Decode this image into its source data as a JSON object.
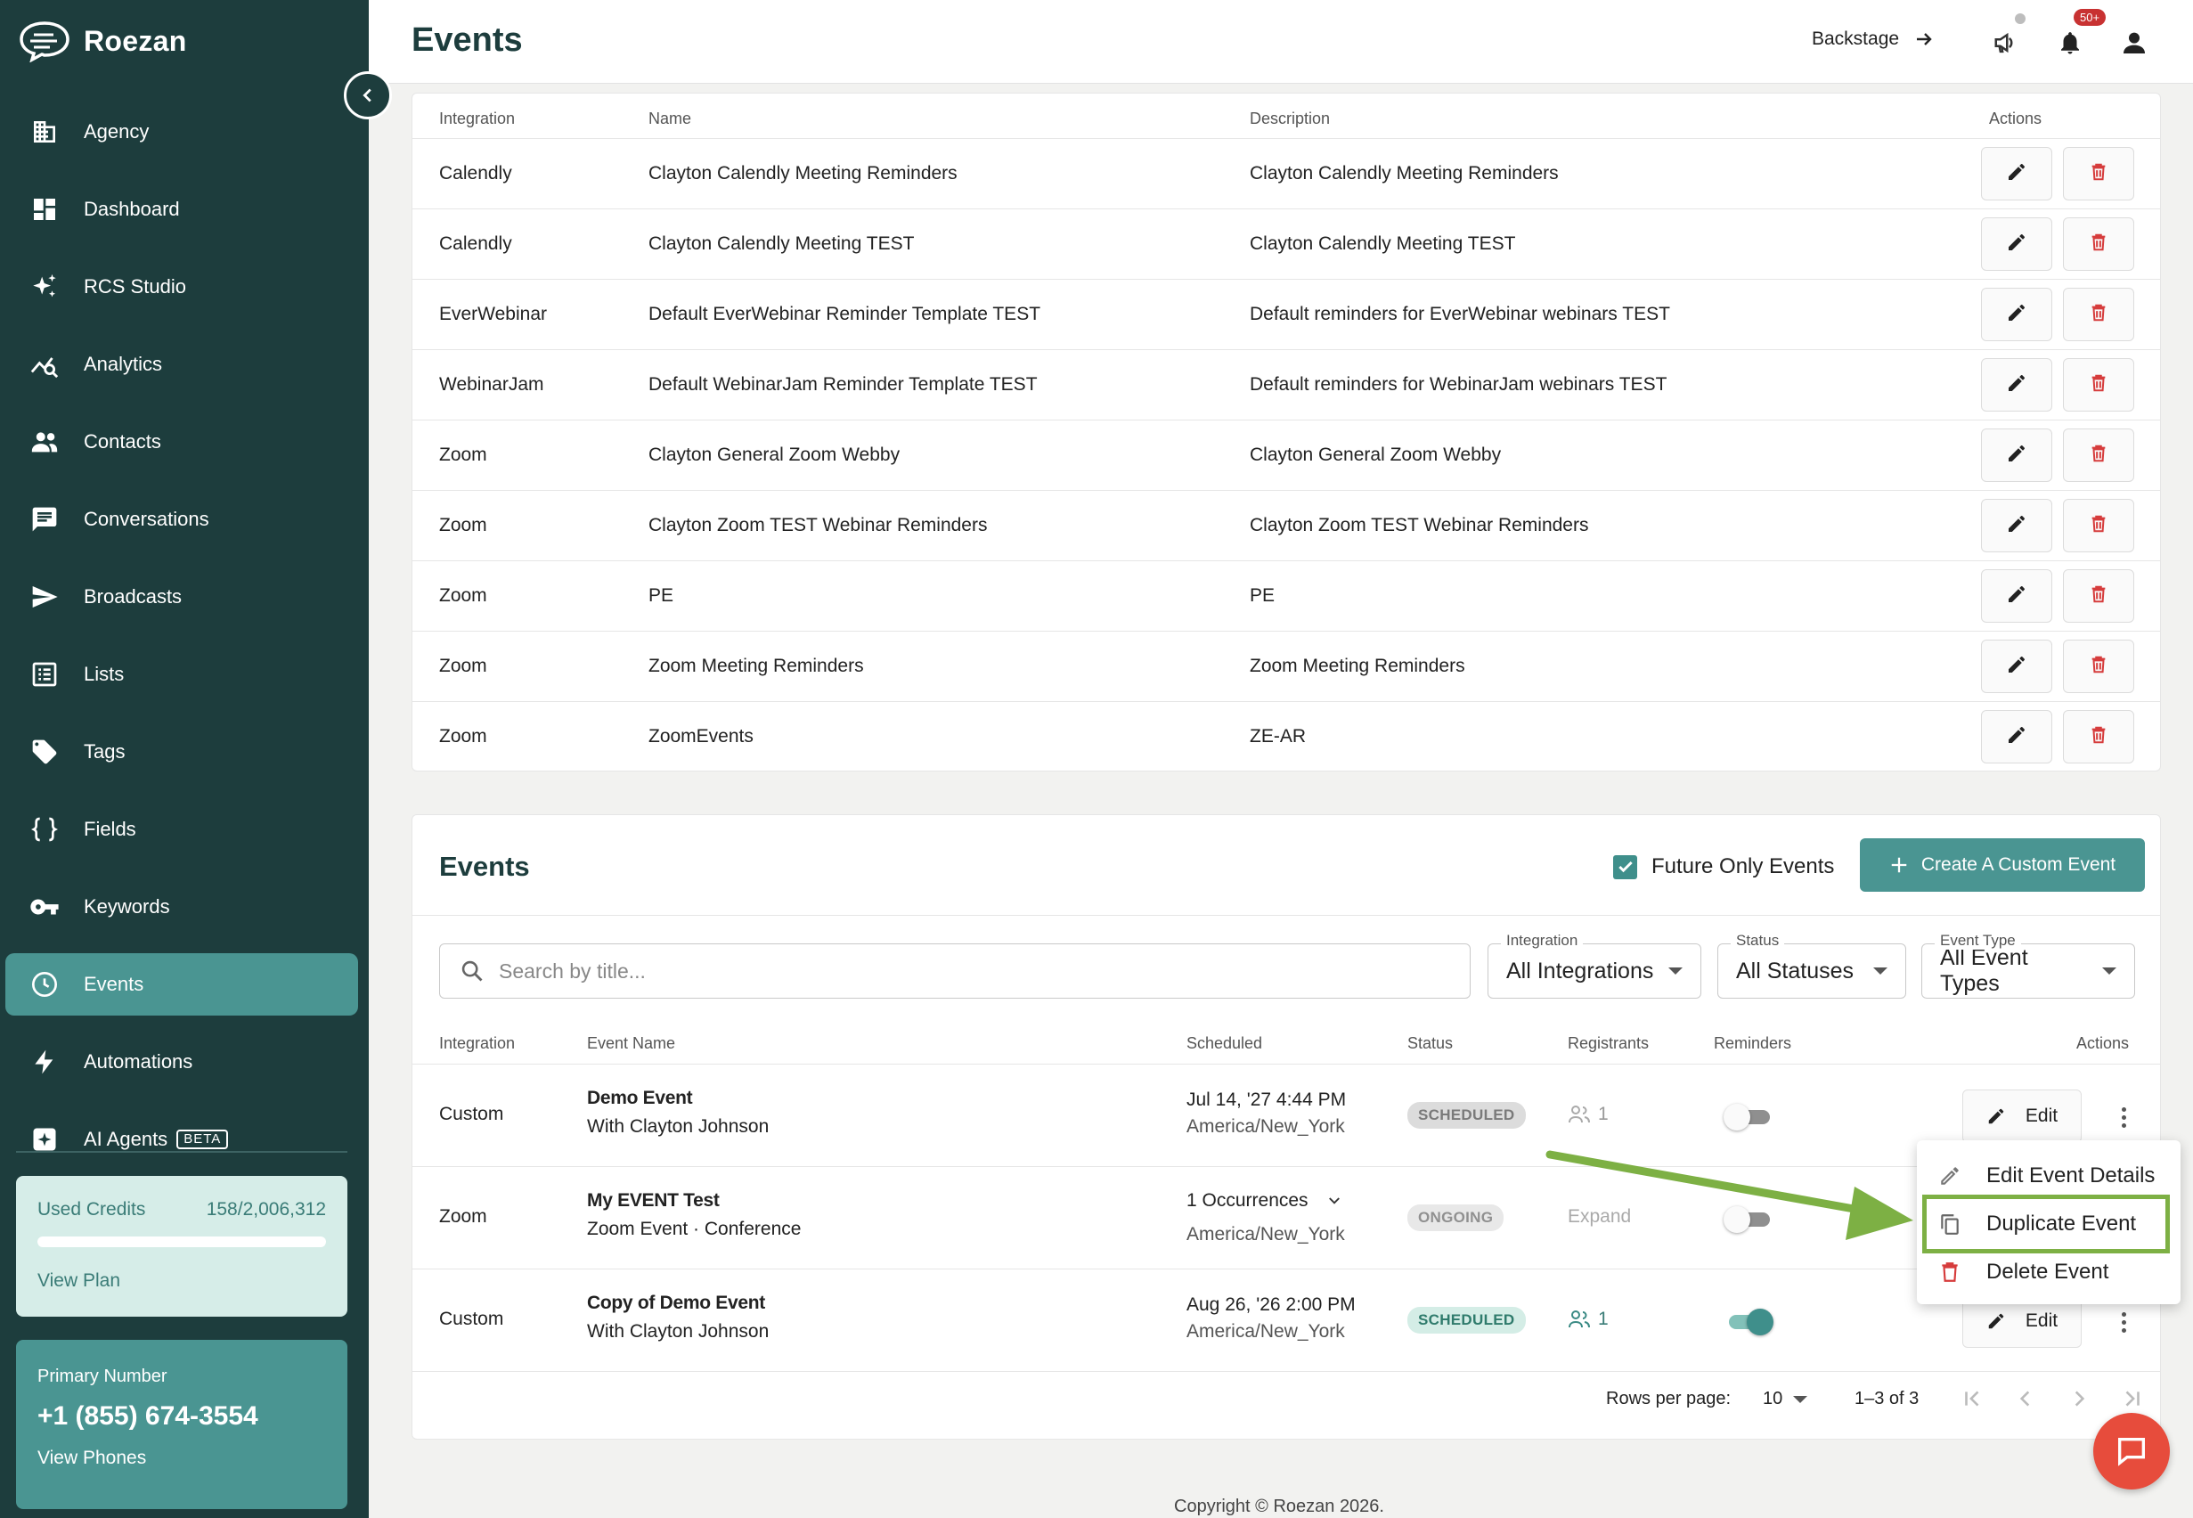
{
  "app": {
    "name": "Roezan",
    "page_title": "Events"
  },
  "sidebar": {
    "items": [
      {
        "label": "Agency",
        "icon": "building-icon"
      },
      {
        "label": "Dashboard",
        "icon": "dashboard-icon"
      },
      {
        "label": "RCS Studio",
        "icon": "sparkle-icon"
      },
      {
        "label": "Analytics",
        "icon": "analytics-icon"
      },
      {
        "label": "Contacts",
        "icon": "people-icon"
      },
      {
        "label": "Conversations",
        "icon": "chat-icon"
      },
      {
        "label": "Broadcasts",
        "icon": "send-icon"
      },
      {
        "label": "Lists",
        "icon": "list-icon"
      },
      {
        "label": "Tags",
        "icon": "tag-icon"
      },
      {
        "label": "Fields",
        "icon": "braces-icon"
      },
      {
        "label": "Keywords",
        "icon": "key-icon"
      },
      {
        "label": "Events",
        "icon": "clock-icon"
      },
      {
        "label": "Automations",
        "icon": "bolt-icon"
      },
      {
        "label": "AI Agents",
        "icon": "ai-sparkle-icon",
        "badge": "BETA"
      }
    ],
    "active": "Events",
    "credits": {
      "label": "Used Credits",
      "value": "158/2,006,312",
      "used_fraction": 0.0001,
      "link": "View Plan"
    },
    "phone": {
      "label": "Primary Number",
      "number": "+1 (855) 674-3554",
      "link": "View Phones"
    }
  },
  "topbar": {
    "backstage": "Backstage",
    "notification_badge": "50+"
  },
  "templates_table": {
    "headers": {
      "integration": "Integration",
      "name": "Name",
      "description": "Description",
      "actions": "Actions"
    },
    "rows": [
      {
        "integration": "Calendly",
        "name": "Clayton Calendly Meeting Reminders",
        "description": "Clayton Calendly Meeting Reminders"
      },
      {
        "integration": "Calendly",
        "name": "Clayton Calendly Meeting TEST",
        "description": "Clayton Calendly Meeting TEST"
      },
      {
        "integration": "EverWebinar",
        "name": "Default EverWebinar Reminder Template TEST",
        "description": "Default reminders for EverWebinar webinars TEST"
      },
      {
        "integration": "WebinarJam",
        "name": "Default WebinarJam Reminder Template TEST",
        "description": "Default reminders for WebinarJam webinars TEST"
      },
      {
        "integration": "Zoom",
        "name": "Clayton General Zoom Webby",
        "description": "Clayton General Zoom Webby"
      },
      {
        "integration": "Zoom",
        "name": "Clayton Zoom TEST Webinar Reminders",
        "description": "Clayton Zoom TEST Webinar Reminders"
      },
      {
        "integration": "Zoom",
        "name": "PE",
        "description": "PE"
      },
      {
        "integration": "Zoom",
        "name": "Zoom Meeting Reminders",
        "description": "Zoom Meeting Reminders"
      },
      {
        "integration": "Zoom",
        "name": "ZoomEvents",
        "description": "ZE-AR"
      }
    ]
  },
  "events": {
    "title": "Events",
    "future_only_label": "Future Only Events",
    "future_only_checked": true,
    "create_button": "Create A Custom Event",
    "search_placeholder": "Search by title...",
    "filters": [
      {
        "label": "Integration",
        "value": "All Integrations"
      },
      {
        "label": "Status",
        "value": "All Statuses"
      },
      {
        "label": "Event Type",
        "value": "All Event Types"
      }
    ],
    "headers": {
      "integration": "Integration",
      "event_name": "Event Name",
      "scheduled": "Scheduled",
      "status": "Status",
      "registrants": "Registrants",
      "reminders": "Reminders",
      "actions": "Actions"
    },
    "rows": [
      {
        "integration": "Custom",
        "name": "Demo Event",
        "sub": "With Clayton Johnson",
        "sched1": "Jul 14, '27 4:44 PM",
        "sched2": "America/New_York",
        "status": "SCHEDULED",
        "registrants": "1",
        "reminders_on": false,
        "edit": "Edit"
      },
      {
        "integration": "Zoom",
        "name": "My EVENT Test",
        "sub": "Zoom Event · Conference",
        "sched1": "1 Occurrences",
        "sched2": "America/New_York",
        "status": "ONGOING",
        "registrants": "Expand",
        "reminders_on": false
      },
      {
        "integration": "Custom",
        "name": "Copy of Demo Event",
        "sub": "With Clayton Johnson",
        "sched1": "Aug 26, '26 2:00 PM",
        "sched2": "America/New_York",
        "status": "SCHEDULED",
        "registrants": "1",
        "reminders_on": true,
        "edit": "Edit"
      }
    ],
    "pagination": {
      "rows_per_page_label": "Rows per page:",
      "rows_per_page": "10",
      "range": "1–3 of 3"
    }
  },
  "context_menu": {
    "items": [
      "Edit Event Details",
      "Duplicate Event",
      "Delete Event"
    ],
    "highlighted": "Duplicate Event"
  },
  "footer": {
    "copyright": "Copyright © Roezan 2026."
  },
  "colors": {
    "sidebar": "#1d3d3d",
    "accent": "#4a9592",
    "delete": "#d63c3c",
    "highlight": "#7db044"
  }
}
